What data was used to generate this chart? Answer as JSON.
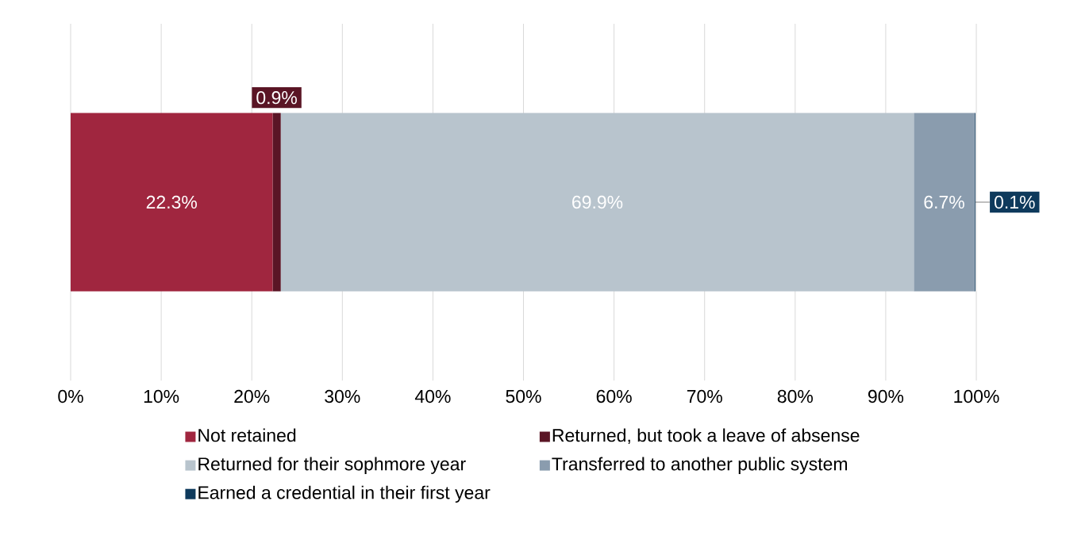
{
  "chart_data": {
    "type": "bar",
    "orientation": "horizontal",
    "stacked": true,
    "categories": [
      null
    ],
    "series": [
      {
        "name": "Not retained",
        "color": "#a0263f",
        "values": [
          22.3
        ],
        "value_labels": [
          "22.3%"
        ]
      },
      {
        "name": "Returned, but took a leave of absense",
        "color": "#5a1525",
        "values": [
          0.9
        ],
        "value_labels": [
          "0.9%"
        ]
      },
      {
        "name": "Returned for their sophmore year",
        "color": "#b8c4cd",
        "values": [
          69.9
        ],
        "value_labels": [
          "69.9%"
        ]
      },
      {
        "name": "Transferred to another public system",
        "color": "#8a9cae",
        "values": [
          6.7
        ],
        "value_labels": [
          "6.7%"
        ]
      },
      {
        "name": "Earned a credential in their first year",
        "color": "#0e3a5c",
        "values": [
          0.1
        ],
        "value_labels": [
          "0.1%"
        ]
      }
    ],
    "xlim": [
      0,
      100
    ],
    "xticks": [
      {
        "value": 0,
        "label": "0%"
      },
      {
        "value": 10,
        "label": "10%"
      },
      {
        "value": 20,
        "label": "20%"
      },
      {
        "value": 30,
        "label": "30%"
      },
      {
        "value": 40,
        "label": "40%"
      },
      {
        "value": 50,
        "label": "50%"
      },
      {
        "value": 60,
        "label": "60%"
      },
      {
        "value": 70,
        "label": "70%"
      },
      {
        "value": 80,
        "label": "80%"
      },
      {
        "value": 90,
        "label": "90%"
      },
      {
        "value": 100,
        "label": "100%"
      }
    ],
    "grid": "x",
    "legend": "bottom"
  }
}
